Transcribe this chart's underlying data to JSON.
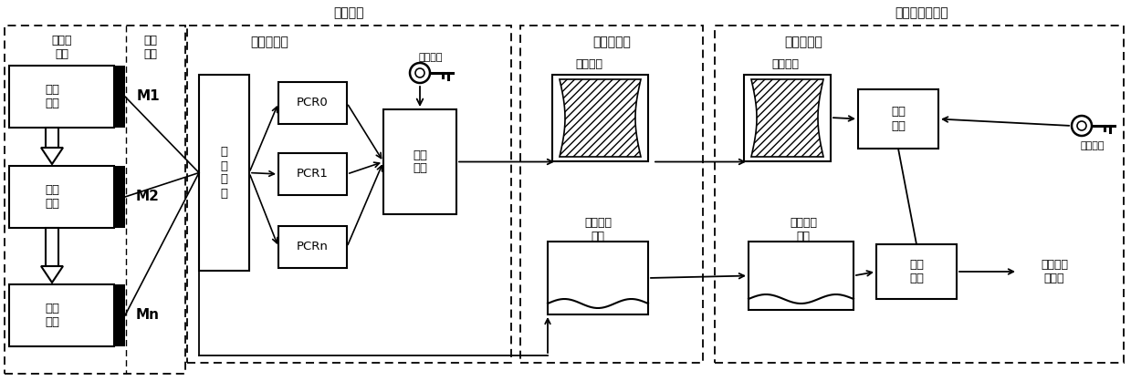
{
  "bg": "#ffffff",
  "title_left": "操控终端",
  "title_right": "测控应用服务器",
  "sec1_hdr1": "完整性\n增强",
  "sec1_hdr2": "软件\n模块",
  "verify_label": "验证\n跳转",
  "M_labels": [
    "M1",
    "M2",
    "Mn"
  ],
  "sec2_title": "完整性表征",
  "digest_label": "数\n字\n摘\n要",
  "PCR_labels": [
    "PCR0",
    "PCR1",
    "PCRn"
  ],
  "sign_algo_label": "签名\n算法",
  "private_key_label": "终端私钥",
  "sec3_title": "完整性证据",
  "dig_sig_label1": "数字签名",
  "mod_hash_label1": "模块散列\n日志",
  "sec4_title": "完整性验证",
  "dig_sig_label2": "数字签名",
  "mod_hash_label2": "模块散列\n日志",
  "sig_verify_label": "签名\n验证",
  "public_key_label": "终端公钥",
  "result_label": "完整性验\n证结果"
}
